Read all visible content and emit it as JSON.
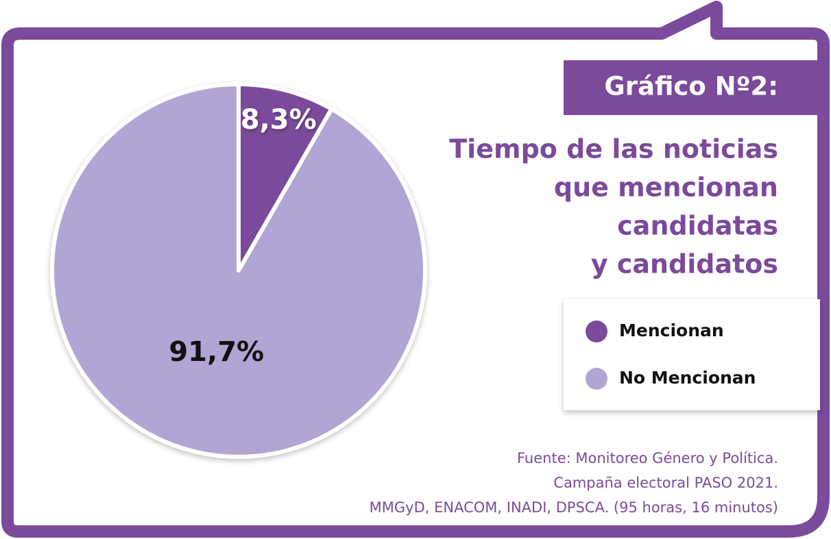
{
  "chart_data": {
    "type": "pie",
    "title": "Gráfico Nº2:",
    "subtitle": [
      "Tiempo de las noticias",
      "que mencionan",
      "candidatas",
      "y candidatos"
    ],
    "categories": [
      "Mencionan",
      "No Mencionan"
    ],
    "values": [
      8.3,
      91.7
    ],
    "value_labels": [
      "8,3%",
      "91,7%"
    ],
    "colors": [
      "#7b4a9b",
      "#b1a5d5"
    ],
    "source": [
      "Fuente: Monitoreo Género y Política.",
      "Campaña electoral PASO 2021.",
      "MMGyD, ENACOM, INADI, DPSCA. (95 horas, 16 minutos)"
    ]
  }
}
